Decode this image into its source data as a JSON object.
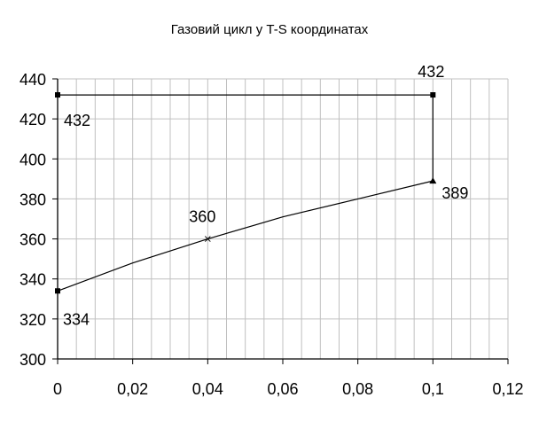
{
  "chart_data": {
    "type": "line",
    "title": "Газовий цикл у T-S координатах",
    "xlim": [
      0,
      0.12
    ],
    "ylim": [
      300,
      440
    ],
    "x_ticks": [
      "0",
      "0,02",
      "0,04",
      "0,06",
      "0,08",
      "0,1",
      "0,12"
    ],
    "y_ticks": [
      "300",
      "320",
      "340",
      "360",
      "380",
      "400",
      "420",
      "440"
    ],
    "grid": true,
    "series": [
      {
        "points": [
          {
            "x": 0,
            "y": 334
          },
          {
            "x": 0.02,
            "y": 348
          },
          {
            "x": 0.04,
            "y": 360
          },
          {
            "x": 0.06,
            "y": 371
          },
          {
            "x": 0.08,
            "y": 380
          },
          {
            "x": 0.1,
            "y": 389
          },
          {
            "x": 0.1,
            "y": 432
          },
          {
            "x": 0,
            "y": 432
          }
        ]
      }
    ],
    "markers": [
      {
        "x": 0,
        "y": 334,
        "label": "334"
      },
      {
        "x": 0.04,
        "y": 360,
        "label": "360"
      },
      {
        "x": 0.1,
        "y": 389,
        "label": "389"
      },
      {
        "x": 0.1,
        "y": 432,
        "label": "432"
      },
      {
        "x": 0,
        "y": 432,
        "label": "432"
      }
    ]
  }
}
